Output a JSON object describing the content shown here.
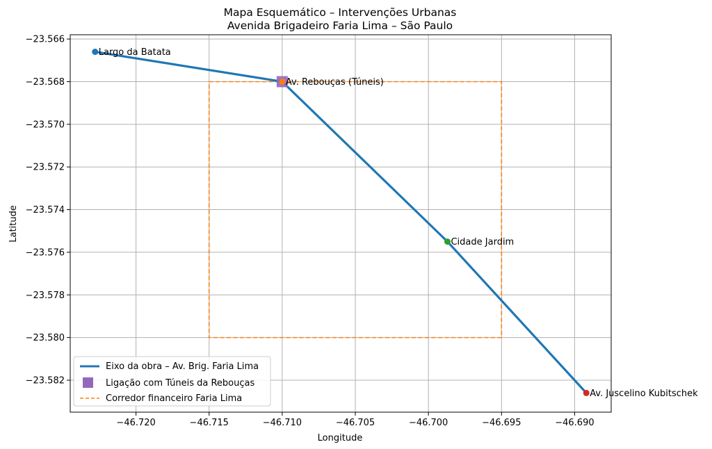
{
  "chart_data": {
    "type": "line",
    "title": "Mapa Esquemático – Intervenções Urbanas",
    "subtitle": "Avenida Brigadeiro Faria Lima – São Paulo",
    "xlabel": "Longitude",
    "ylabel": "Latitude",
    "xlim": [
      -46.7245,
      -46.6875
    ],
    "ylim": [
      -23.5835,
      -23.5658
    ],
    "xticks": [
      -46.72,
      -46.715,
      -46.71,
      -46.705,
      -46.7,
      -46.695,
      -46.69
    ],
    "xtick_labels": [
      "−46.720",
      "−46.715",
      "−46.710",
      "−46.705",
      "−46.700",
      "−46.695",
      "−46.690"
    ],
    "yticks": [
      -23.566,
      -23.568,
      -23.57,
      -23.572,
      -23.574,
      -23.576,
      -23.578,
      -23.58,
      -23.582
    ],
    "ytick_labels": [
      "−23.566",
      "−23.568",
      "−23.570",
      "−23.572",
      "−23.574",
      "−23.576",
      "−23.578",
      "−23.580",
      "−23.582"
    ],
    "grid": true,
    "legend_position": "lower-left",
    "series": [
      {
        "name": "Eixo da obra – Av. Brig. Faria Lima",
        "kind": "line",
        "color": "#1f77b4",
        "points": [
          {
            "x": -46.7228,
            "y": -23.5666
          },
          {
            "x": -46.71,
            "y": -23.568
          },
          {
            "x": -46.6987,
            "y": -23.5755
          },
          {
            "x": -46.6892,
            "y": -23.5826
          }
        ]
      },
      {
        "name": "Ligação com Túneis da Rebouças",
        "kind": "marker",
        "marker": "square",
        "color": "#9467bd",
        "points": [
          {
            "x": -46.71,
            "y": -23.568
          }
        ]
      },
      {
        "name": "Corredor financeiro Faria Lima",
        "kind": "dashed-rect",
        "color": "#ff7f0e",
        "x_range": [
          -46.715,
          -46.695
        ],
        "y_range": [
          -23.58,
          -23.568
        ]
      }
    ],
    "points_of_interest": [
      {
        "label": "Largo da Batata",
        "x": -46.7228,
        "y": -23.5666,
        "color": "#1f77b4"
      },
      {
        "label": "Av. Rebouças (Túneis)",
        "x": -46.71,
        "y": -23.568,
        "color": "#ff7f0e"
      },
      {
        "label": "Cidade Jardim",
        "x": -46.6987,
        "y": -23.5755,
        "color": "#2ca02c"
      },
      {
        "label": "Av. Juscelino Kubitschek",
        "x": -46.6892,
        "y": -23.5826,
        "color": "#d62728"
      }
    ]
  }
}
